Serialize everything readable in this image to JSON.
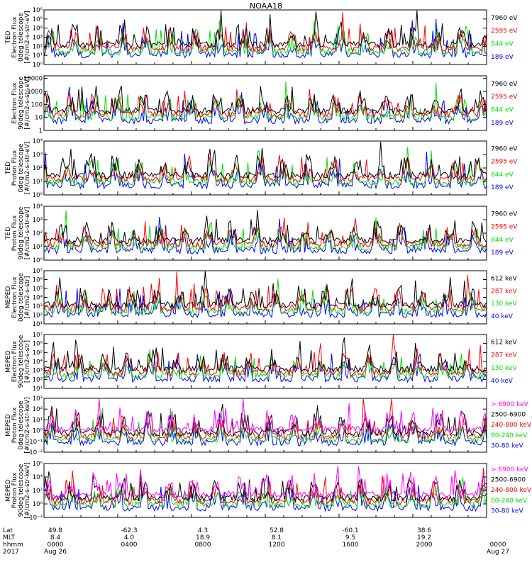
{
  "title": "NOAA18",
  "chart_data": [
    {
      "type": "line",
      "ylabel": [
        "TED",
        "Electron Flux",
        "0deg telescope",
        "[#/cm2-s-str-eV]"
      ],
      "ytick_labels": [
        "10⁰",
        "10¹",
        "10²",
        "10³",
        "10⁴",
        "10⁵",
        "10⁶"
      ],
      "ytick_values": [
        0,
        1,
        2,
        3,
        4,
        5,
        6
      ],
      "ylim_log10": [
        0,
        6
      ],
      "log_scale": true,
      "series": [
        {
          "name": "7960 eV",
          "color": "#000000"
        },
        {
          "name": "2595 eV",
          "color": "#ff0000"
        },
        {
          "name": "844 eV",
          "color": "#00e000"
        },
        {
          "name": "189 eV",
          "color": "#0000ff"
        }
      ]
    },
    {
      "type": "line",
      "ylabel": [
        "",
        "Electron Flux",
        "90deg telescope",
        "[#/cm2-s-str-eV]"
      ],
      "ytick_labels": [
        "1",
        "10",
        "100",
        "1000",
        "10000"
      ],
      "ytick_values": [
        0,
        1,
        2,
        3,
        4
      ],
      "ylim_log10": [
        0,
        4.2
      ],
      "log_scale": true,
      "series": [
        {
          "name": "7960 eV",
          "color": "#000000"
        },
        {
          "name": "2595 eV",
          "color": "#ff0000"
        },
        {
          "name": "844 eV",
          "color": "#00e000"
        },
        {
          "name": "189 eV",
          "color": "#0000ff"
        }
      ]
    },
    {
      "type": "line",
      "ylabel": [
        "TED",
        "Proton Flux",
        "0deg telescope",
        "[#/cm2-s-str-eV]"
      ],
      "ytick_labels": [
        "10⁰",
        "10¹",
        "10²",
        "10³",
        "10⁴"
      ],
      "ytick_values": [
        0,
        1,
        2,
        3,
        4
      ],
      "ylim_log10": [
        0,
        4
      ],
      "log_scale": true,
      "series": [
        {
          "name": "7960 eV",
          "color": "#000000"
        },
        {
          "name": "2595 eV",
          "color": "#ff0000"
        },
        {
          "name": "844 eV",
          "color": "#00e000"
        },
        {
          "name": "189 eV",
          "color": "#0000ff"
        }
      ]
    },
    {
      "type": "line",
      "ylabel": [
        "TED",
        "Proton Flux",
        "90deg telescope",
        "[#/cm2-s-str-eV]"
      ],
      "ytick_labels": [
        "10⁰",
        "10¹",
        "10²",
        "10³",
        "10⁴"
      ],
      "ytick_values": [
        0,
        1,
        2,
        3,
        4
      ],
      "ylim_log10": [
        0,
        4
      ],
      "log_scale": true,
      "series": [
        {
          "name": "7960 eV",
          "color": "#000000"
        },
        {
          "name": "2595 eV",
          "color": "#ff0000"
        },
        {
          "name": "844 eV",
          "color": "#00e000"
        },
        {
          "name": "189 eV",
          "color": "#0000ff"
        }
      ]
    },
    {
      "type": "line",
      "ylabel": [
        "MEPED",
        "Electron Flux",
        "0deg telescope",
        "[#/cm2-s-str]"
      ],
      "ytick_labels": [
        "10¹",
        "10²",
        "10³",
        "10⁴",
        "10⁵",
        "10⁶",
        "10⁷"
      ],
      "ytick_values": [
        1,
        2,
        3,
        4,
        5,
        6,
        7
      ],
      "ylim_log10": [
        1,
        7
      ],
      "log_scale": true,
      "series": [
        {
          "name": "612 keV",
          "color": "#000000"
        },
        {
          "name": "287 keV",
          "color": "#ff0000"
        },
        {
          "name": "130 keV",
          "color": "#00e000"
        },
        {
          "name": "40 keV",
          "color": "#0000ff"
        }
      ]
    },
    {
      "type": "line",
      "ylabel": [
        "MEPED",
        "Electron Flux",
        "90deg telescope",
        "[#/cm2-s-str]"
      ],
      "ytick_labels": [
        "10¹",
        "10²",
        "10³",
        "10⁴",
        "10⁵",
        "10⁶",
        "10⁷"
      ],
      "ytick_values": [
        1,
        2,
        3,
        4,
        5,
        6,
        7
      ],
      "ylim_log10": [
        1,
        7
      ],
      "log_scale": true,
      "series": [
        {
          "name": "612 keV",
          "color": "#000000"
        },
        {
          "name": "287 keV",
          "color": "#ff0000"
        },
        {
          "name": "130 keV",
          "color": "#00e000"
        },
        {
          "name": "40 keV",
          "color": "#0000ff"
        }
      ]
    },
    {
      "type": "line",
      "ylabel": [
        "MEPED",
        "Proton Flux",
        "0deg telescope",
        "[#/cm2-s-str-keV]"
      ],
      "ytick_labels": [
        "10⁻²",
        "10⁻¹",
        "10⁰",
        "10¹",
        "10²",
        "10³"
      ],
      "ytick_values": [
        -2,
        -1,
        0,
        1,
        2,
        3
      ],
      "ylim_log10": [
        -2,
        3
      ],
      "log_scale": true,
      "series": [
        {
          "name": "> 6900 keV",
          "color": "#ff00ff"
        },
        {
          "name": "2500-6900",
          "color": "#000000"
        },
        {
          "name": "240-800 keV",
          "color": "#ff0000"
        },
        {
          "name": "80-240 keV",
          "color": "#00e000"
        },
        {
          "name": "30-80 keV",
          "color": "#0000ff"
        }
      ]
    },
    {
      "type": "line",
      "ylabel": [
        "MEPED",
        "Proton Flux",
        "90deg telescope",
        "[#/cm2-s-str-keV]"
      ],
      "ytick_labels": [
        "10⁻²",
        "10⁰",
        "10²",
        "10⁴",
        "10⁶"
      ],
      "ytick_values": [
        -2,
        0,
        2,
        4,
        6
      ],
      "ylim_log10": [
        -2,
        6
      ],
      "log_scale": true,
      "series": [
        {
          "name": "> 6900 keV",
          "color": "#ff00ff"
        },
        {
          "name": "2500-6900",
          "color": "#000000"
        },
        {
          "name": "240-800 keV",
          "color": "#ff0000"
        },
        {
          "name": "80-240 keV",
          "color": "#00e000"
        },
        {
          "name": "30-80 keV",
          "color": "#0000ff"
        }
      ]
    }
  ],
  "xaxis": {
    "row_labels": [
      "Lat",
      "MLT",
      "hhmm",
      "2017"
    ],
    "ticks": [
      {
        "lat": "49.8",
        "mlt": "8.4",
        "hhmm": "0000",
        "date": "Aug 26"
      },
      {
        "lat": "-62.3",
        "mlt": "4.0",
        "hhmm": "0400",
        "date": ""
      },
      {
        "lat": "4.3",
        "mlt": "18.9",
        "hhmm": "0800",
        "date": ""
      },
      {
        "lat": "52.8",
        "mlt": "8.1",
        "hhmm": "1200",
        "date": ""
      },
      {
        "lat": "-60.1",
        "mlt": "9.5",
        "hhmm": "1600",
        "date": ""
      },
      {
        "lat": "38.6",
        "mlt": "19.2",
        "hhmm": "2000",
        "date": ""
      },
      {
        "lat": "",
        "mlt": "",
        "hhmm": "0000",
        "date": "Aug 27"
      }
    ],
    "range_hours": [
      0,
      24
    ]
  }
}
